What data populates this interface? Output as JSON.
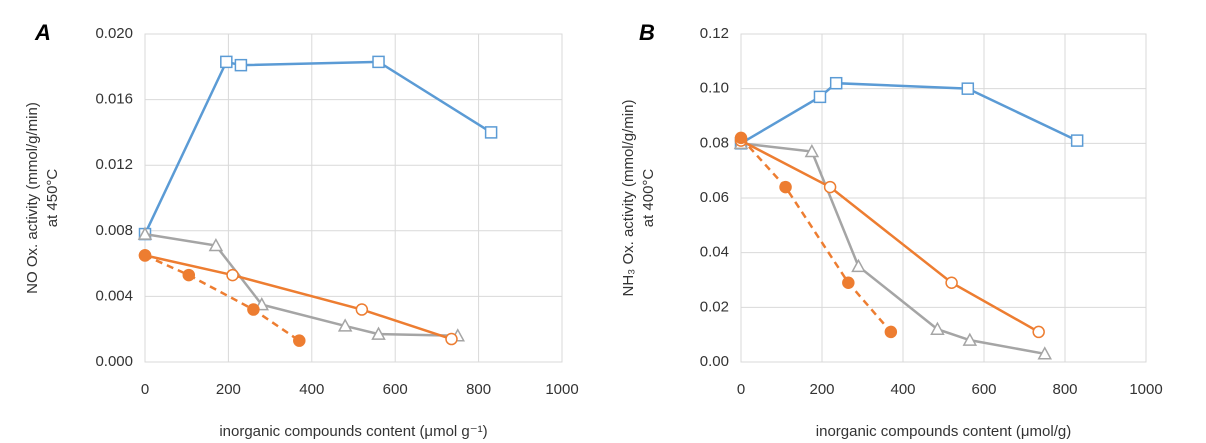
{
  "chart_data": [
    {
      "type": "line",
      "panel": "A",
      "ylabel": [
        "NO Ox. activity (mmol/g/min)",
        "at 450°C"
      ],
      "xlabel": "inorganic compounds content (μmol g⁻¹)",
      "xlim": [
        0,
        1000
      ],
      "xticks": [
        0,
        200,
        400,
        600,
        800,
        1000
      ],
      "ylim": [
        0,
        0.02
      ],
      "yticks": [
        {
          "value": 0,
          "label": "0.000"
        },
        {
          "value": 0.004,
          "label": "0.004"
        },
        {
          "value": 0.008,
          "label": "0.008"
        },
        {
          "value": 0.012,
          "label": "0.012"
        },
        {
          "value": 0.016,
          "label": "0.016"
        },
        {
          "value": 0.02,
          "label": "0.020"
        }
      ],
      "grid": true,
      "series": [
        {
          "color": "#5b9bd5",
          "marker": "square",
          "filled": false,
          "dashed": false,
          "x": [
            0,
            195,
            230,
            560,
            830
          ],
          "values": [
            0.0078,
            0.0183,
            0.0181,
            0.0183,
            0.014
          ]
        },
        {
          "color": "#a5a5a5",
          "marker": "triangle",
          "filled": false,
          "dashed": false,
          "x": [
            0,
            170,
            280,
            480,
            560,
            750
          ],
          "values": [
            0.0078,
            0.0071,
            0.0035,
            0.0022,
            0.0017,
            0.0016
          ]
        },
        {
          "color": "#ed7d31",
          "marker": "circle",
          "filled": false,
          "dashed": false,
          "x": [
            0,
            210,
            520,
            735
          ],
          "values": [
            0.0065,
            0.0053,
            0.0032,
            0.0014
          ]
        },
        {
          "color": "#ed7d31",
          "marker": "circle",
          "filled": true,
          "dashed": true,
          "x": [
            0,
            105,
            260,
            370
          ],
          "values": [
            0.0065,
            0.0053,
            0.0032,
            0.0013
          ]
        }
      ]
    },
    {
      "type": "line",
      "panel": "B",
      "ylabel": [
        "NH₃ Ox. activity (mmol/g/min)",
        "at 400°C"
      ],
      "xlabel": "inorganic compounds content (μmol/g)",
      "xlim": [
        0,
        1000
      ],
      "xticks": [
        0,
        200,
        400,
        600,
        800,
        1000
      ],
      "ylim": [
        0,
        0.12
      ],
      "yticks": [
        {
          "value": 0,
          "label": "0.00"
        },
        {
          "value": 0.02,
          "label": "0.02"
        },
        {
          "value": 0.04,
          "label": "0.04"
        },
        {
          "value": 0.06,
          "label": "0.06"
        },
        {
          "value": 0.08,
          "label": "0.08"
        },
        {
          "value": 0.1,
          "label": "0.10"
        },
        {
          "value": 0.12,
          "label": "0.12"
        }
      ],
      "grid": true,
      "series": [
        {
          "color": "#5b9bd5",
          "marker": "square",
          "filled": false,
          "dashed": false,
          "x": [
            0,
            195,
            235,
            560,
            830
          ],
          "values": [
            0.08,
            0.097,
            0.102,
            0.1,
            0.081
          ]
        },
        {
          "color": "#a5a5a5",
          "marker": "triangle",
          "filled": false,
          "dashed": false,
          "x": [
            0,
            175,
            290,
            485,
            565,
            750
          ],
          "values": [
            0.08,
            0.077,
            0.035,
            0.012,
            0.008,
            0.003
          ]
        },
        {
          "color": "#ed7d31",
          "marker": "circle",
          "filled": false,
          "dashed": false,
          "x": [
            0,
            220,
            520,
            735
          ],
          "values": [
            0.081,
            0.064,
            0.029,
            0.011
          ]
        },
        {
          "color": "#ed7d31",
          "marker": "circle",
          "filled": true,
          "dashed": true,
          "x": [
            0,
            110,
            265,
            370
          ],
          "values": [
            0.082,
            0.064,
            0.029,
            0.011
          ]
        }
      ]
    }
  ]
}
